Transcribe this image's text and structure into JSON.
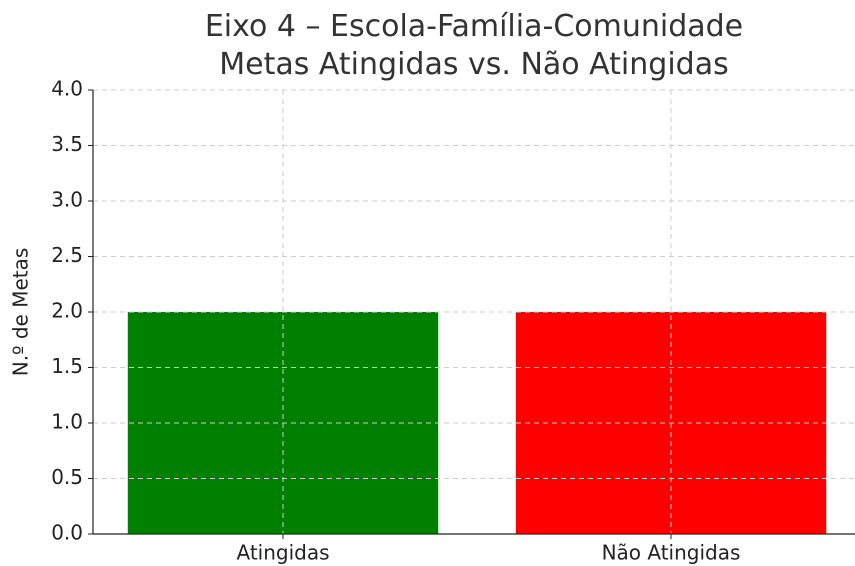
{
  "chart_data": {
    "type": "bar",
    "title": "Eixo 4 – Escola-Família-Comunidade\nMetas Atingidas vs. Não Atingidas",
    "ylabel": "N.º de Metas",
    "categories": [
      "Atingidas",
      "Não Atingidas"
    ],
    "values": [
      2,
      2
    ],
    "colors": [
      "#008000",
      "#ff0000"
    ],
    "ylim": [
      0,
      4
    ],
    "yticks": [
      {
        "value": 0,
        "label": "0.0"
      },
      {
        "value": 0.5,
        "label": "0.5"
      },
      {
        "value": 1,
        "label": "1.0"
      },
      {
        "value": 1.5,
        "label": "1.5"
      },
      {
        "value": 2,
        "label": "2.0"
      },
      {
        "value": 2.5,
        "label": "2.5"
      },
      {
        "value": 3,
        "label": "3.0"
      },
      {
        "value": 3.5,
        "label": "3.5"
      },
      {
        "value": 4,
        "label": "4.0"
      }
    ],
    "grid": true
  }
}
